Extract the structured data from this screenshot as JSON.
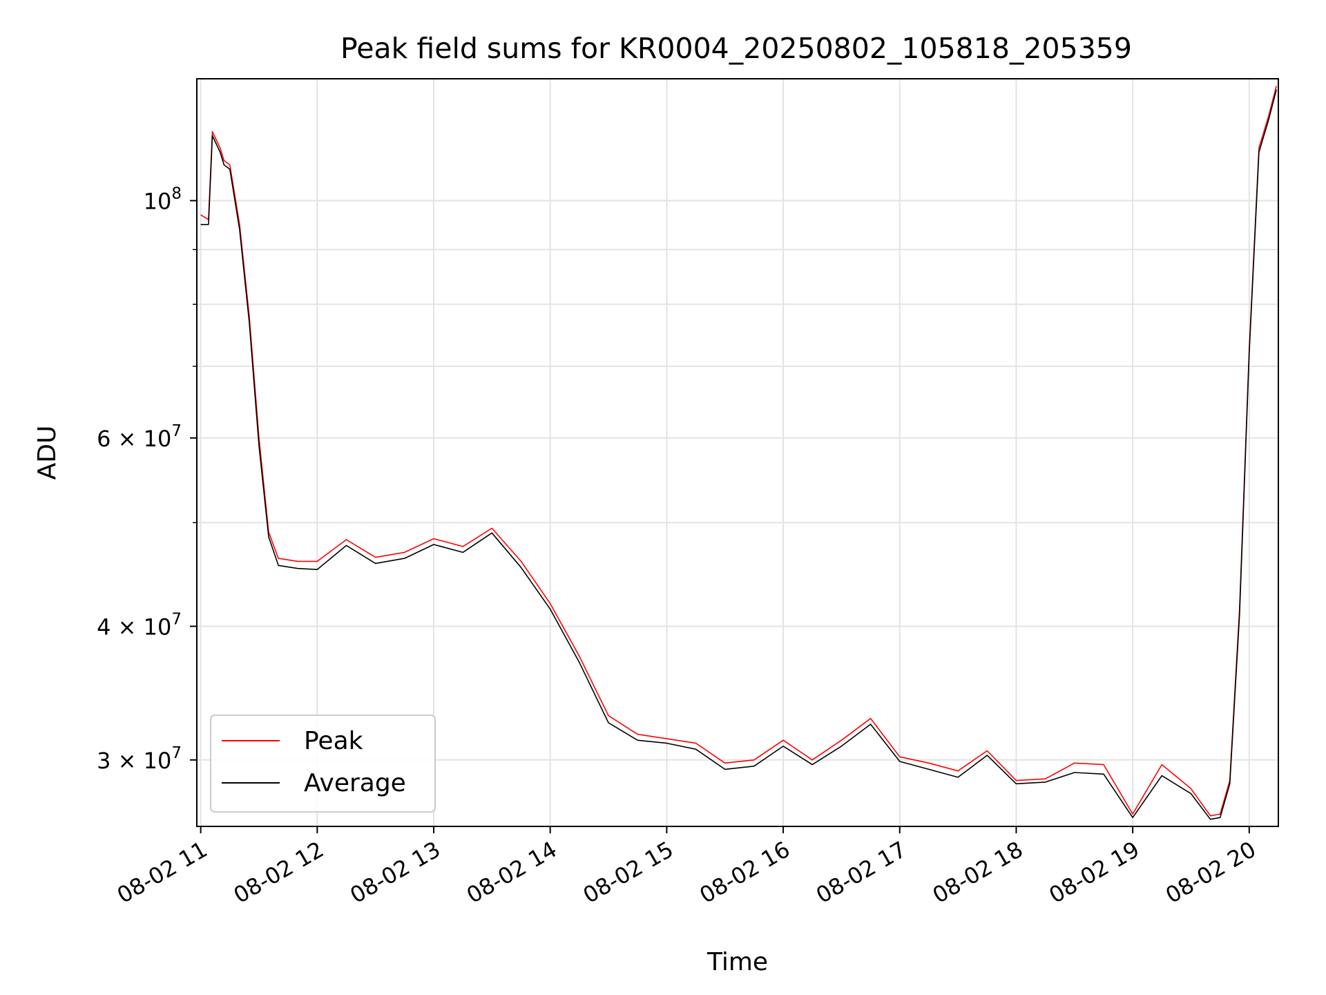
{
  "chart_data": {
    "type": "line",
    "title": "Peak field sums for KR0004_20250802_105818_205359",
    "xlabel": "Time",
    "ylabel": "ADU",
    "y_scale": "log",
    "xlim": [
      "2025-08-02 10:58",
      "2025-08-02 20:15"
    ],
    "ylim": [
      26000000,
      130000000
    ],
    "x_ticks": [
      "08-02 11",
      "08-02 12",
      "08-02 13",
      "08-02 14",
      "08-02 15",
      "08-02 16",
      "08-02 17",
      "08-02 18",
      "08-02 19",
      "08-02 20"
    ],
    "y_ticks": [
      {
        "value": 100000000,
        "base": "10",
        "exp": "8",
        "prefix": ""
      },
      {
        "value": 60000000,
        "base": "10",
        "exp": "7",
        "prefix": "6 × "
      },
      {
        "value": 40000000,
        "base": "10",
        "exp": "7",
        "prefix": "4 × "
      },
      {
        "value": 30000000,
        "base": "10",
        "exp": "7",
        "prefix": "3 × "
      }
    ],
    "y_minor_ticks": [
      50000000,
      70000000,
      80000000,
      90000000
    ],
    "grid": true,
    "legend_position": "bottom-left",
    "x": [
      "11:00",
      "11:04",
      "11:06",
      "11:10",
      "11:12",
      "11:15",
      "11:20",
      "11:25",
      "11:30",
      "11:35",
      "11:40",
      "11:50",
      "12:00",
      "12:15",
      "12:30",
      "12:45",
      "13:00",
      "13:15",
      "13:30",
      "13:45",
      "14:00",
      "14:15",
      "14:30",
      "14:45",
      "15:00",
      "15:15",
      "15:30",
      "15:45",
      "16:00",
      "16:15",
      "16:30",
      "16:45",
      "17:00",
      "17:15",
      "17:30",
      "17:45",
      "18:00",
      "18:15",
      "18:30",
      "18:45",
      "19:00",
      "19:15",
      "19:30",
      "19:40",
      "19:45",
      "19:50",
      "19:55",
      "20:00",
      "20:05",
      "20:10",
      "20:14"
    ],
    "series": [
      {
        "name": "Peak",
        "color": "#ff0000",
        "values": [
          97000000,
          96000000,
          116000000,
          112000000,
          109000000,
          108000000,
          95000000,
          78000000,
          60000000,
          49000000,
          46300000,
          46000000,
          46000000,
          48200000,
          46400000,
          46900000,
          48300000,
          47500000,
          49400000,
          46000000,
          42000000,
          37500000,
          33000000,
          31700000,
          31400000,
          31100000,
          29800000,
          30000000,
          31300000,
          30000000,
          31300000,
          32800000,
          30200000,
          29800000,
          29300000,
          30600000,
          28700000,
          28800000,
          29800000,
          29700000,
          26700000,
          29700000,
          28200000,
          26600000,
          26700000,
          28700000,
          41500000,
          72500000,
          112000000,
          120000000,
          128000000
        ]
      },
      {
        "name": "Average",
        "color": "#000000",
        "values": [
          95000000,
          95000000,
          115000000,
          111000000,
          108000000,
          107000000,
          94000000,
          77000000,
          59000000,
          48500000,
          45600000,
          45300000,
          45200000,
          47600000,
          45800000,
          46300000,
          47700000,
          46900000,
          48900000,
          45400000,
          41500000,
          37000000,
          32500000,
          31300000,
          31100000,
          30700000,
          29400000,
          29600000,
          30900000,
          29700000,
          30900000,
          32400000,
          29900000,
          29400000,
          28900000,
          30300000,
          28500000,
          28600000,
          29200000,
          29100000,
          26500000,
          29000000,
          27900000,
          26400000,
          26500000,
          28500000,
          41000000,
          72000000,
          111000000,
          119000000,
          127000000
        ]
      }
    ]
  }
}
